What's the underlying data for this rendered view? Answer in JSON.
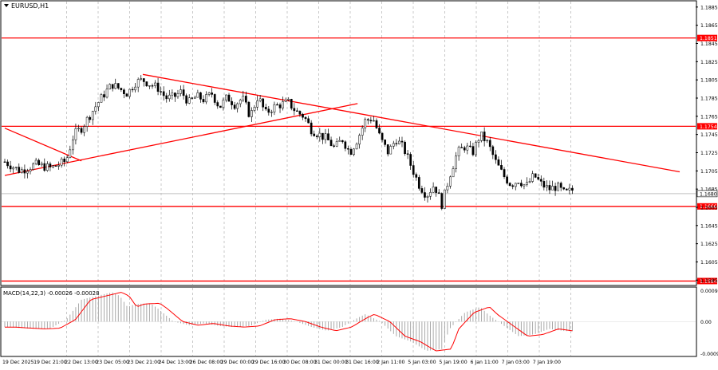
{
  "chart_data": {
    "type": "candlestick",
    "title": "EURUSD,H1",
    "indicator_label": "MACD(14,22,3) -0.00026 -0.00028",
    "colors": {
      "level_line": "#ff0000",
      "trend_line": "#ff0000",
      "candle": "#000000",
      "grid": "#c8c8c8",
      "current_line": "#c0c0c0",
      "macd_signal": "#ff0000",
      "macd_hist": "#a0a0a0"
    },
    "y_price_ticks": [
      "1.1885",
      "1.1865",
      "1.1845",
      "1.1825",
      "1.1805",
      "1.1785",
      "1.1765",
      "1.1745",
      "1.1725",
      "1.1705",
      "1.1685",
      "1.1665",
      "1.1645",
      "1.1625",
      "1.1605",
      "1.1585"
    ],
    "price_range": [
      1.158,
      1.1891
    ],
    "levels": [
      {
        "label": "1.1851",
        "value": 1.1851
      },
      {
        "label": "1.1754",
        "value": 1.1754
      },
      {
        "label": "1.1666",
        "value": 1.1666
      },
      {
        "label": "1.1584",
        "value": 1.1584
      }
    ],
    "current_price": {
      "label": "1.1680",
      "value": 1.168
    },
    "x_labels": [
      "19 Dec 2025",
      "19 Dec 21:00",
      "22 Dec 13:00",
      "23 Dec 05:00",
      "23 Dec 21:00",
      "24 Dec 13:00",
      "26 Dec 08:00",
      "29 Dec 00:00",
      "29 Dec 16:00",
      "30 Dec 08:00",
      "31 Dec 00:00",
      "31 Dec 16:00",
      "2 Jan 11:00",
      "5 Jan 03:00",
      "5 Jan 19:00",
      "6 Jan 11:00",
      "7 Jan 03:00",
      "7 Jan 19:00"
    ],
    "macd_ticks": [
      "0.00092",
      "0.00",
      "-0.00093"
    ],
    "macd_range": [
      -0.00093,
      0.00092
    ],
    "trendlines": [
      {
        "from": [
          0,
          1.17
        ],
        "to": [
          46,
          1.1779
        ]
      },
      {
        "from": [
          18,
          1.1811
        ],
        "to": [
          88,
          1.1704
        ]
      },
      {
        "from": [
          0,
          1.1752
        ],
        "to": [
          10,
          1.1716
        ]
      }
    ],
    "anchors": [
      [
        0,
        1.1715
      ],
      [
        2,
        1.1705
      ],
      [
        4,
        1.1712
      ],
      [
        6,
        1.1708
      ],
      [
        8,
        1.1716
      ],
      [
        9,
        1.1745
      ],
      [
        10,
        1.1752
      ],
      [
        11,
        1.1765
      ],
      [
        12,
        1.1778
      ],
      [
        13,
        1.179
      ],
      [
        14,
        1.18
      ],
      [
        15,
        1.1795
      ],
      [
        16,
        1.179
      ],
      [
        17,
        1.1802
      ],
      [
        18,
        1.1805
      ],
      [
        19,
        1.18
      ],
      [
        20,
        1.1796
      ],
      [
        21,
        1.1785
      ],
      [
        22,
        1.1786
      ],
      [
        23,
        1.1792
      ],
      [
        24,
        1.178
      ],
      [
        25,
        1.1787
      ],
      [
        26,
        1.1783
      ],
      [
        27,
        1.179
      ],
      [
        28,
        1.1775
      ],
      [
        29,
        1.1786
      ],
      [
        30,
        1.1778
      ],
      [
        31,
        1.1785
      ],
      [
        32,
        1.1765
      ],
      [
        33,
        1.1787
      ],
      [
        34,
        1.1768
      ],
      [
        35,
        1.1775
      ],
      [
        36,
        1.1778
      ],
      [
        37,
        1.178
      ],
      [
        38,
        1.177
      ],
      [
        39,
        1.1765
      ],
      [
        40,
        1.175
      ],
      [
        41,
        1.1745
      ],
      [
        42,
        1.174
      ],
      [
        43,
        1.173
      ],
      [
        44,
        1.174
      ],
      [
        45,
        1.1725
      ],
      [
        46,
        1.174
      ],
      [
        47,
        1.176
      ],
      [
        48,
        1.1763
      ],
      [
        49,
        1.174
      ],
      [
        50,
        1.1725
      ],
      [
        51,
        1.174
      ],
      [
        52,
        1.173
      ],
      [
        53,
        1.171
      ],
      [
        54,
        1.169
      ],
      [
        55,
        1.1678
      ],
      [
        56,
        1.169
      ],
      [
        57,
        1.1668
      ],
      [
        58,
        1.17
      ],
      [
        59,
        1.1725
      ],
      [
        60,
        1.1732
      ],
      [
        61,
        1.1725
      ],
      [
        62,
        1.1745
      ],
      [
        63,
        1.1735
      ],
      [
        64,
        1.1715
      ],
      [
        65,
        1.17
      ],
      [
        66,
        1.169
      ],
      [
        67,
        1.1695
      ],
      [
        68,
        1.1688
      ],
      [
        69,
        1.17
      ],
      [
        70,
        1.169
      ],
      [
        71,
        1.1685
      ],
      [
        72,
        1.1688
      ],
      [
        73,
        1.168
      ],
      [
        74,
        1.1684
      ]
    ],
    "macd_anchors": [
      [
        0,
        -0.00015
      ],
      [
        4,
        -0.0002
      ],
      [
        6,
        -0.00018
      ],
      [
        8,
        5e-05
      ],
      [
        10,
        0.0006
      ],
      [
        12,
        0.0007
      ],
      [
        14,
        0.0008
      ],
      [
        15,
        0.0007
      ],
      [
        16,
        0.0004
      ],
      [
        17,
        0.00048
      ],
      [
        19,
        0.0005
      ],
      [
        20,
        0.00035
      ],
      [
        22,
        0.0
      ],
      [
        24,
        -0.0001
      ],
      [
        26,
        -5e-05
      ],
      [
        28,
        -0.00012
      ],
      [
        30,
        -0.00015
      ],
      [
        32,
        -0.00012
      ],
      [
        34,
        5e-05
      ],
      [
        36,
        8e-05
      ],
      [
        38,
        0.0
      ],
      [
        40,
        -0.00015
      ],
      [
        42,
        -0.00025
      ],
      [
        44,
        -0.00015
      ],
      [
        46,
        0.0001
      ],
      [
        47,
        0.0002
      ],
      [
        49,
        0.0
      ],
      [
        51,
        -0.0004
      ],
      [
        53,
        -0.00055
      ],
      [
        55,
        -0.0008
      ],
      [
        57,
        -0.00075
      ],
      [
        58,
        -0.0002
      ],
      [
        60,
        0.00025
      ],
      [
        62,
        0.0004
      ],
      [
        63,
        0.0002
      ],
      [
        65,
        -0.0001
      ],
      [
        67,
        -0.0004
      ],
      [
        69,
        -0.00035
      ],
      [
        71,
        -0.0002
      ],
      [
        73,
        -0.00026
      ],
      [
        74,
        -0.00026
      ]
    ]
  }
}
